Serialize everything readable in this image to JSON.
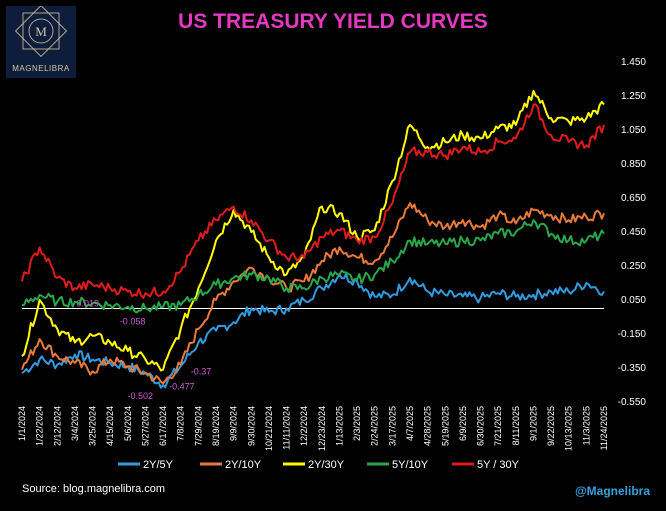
{
  "header": {
    "title": "US TREASURY YIELD CURVES",
    "logo_text": "MAGNELIBRA",
    "logo_monogram": "M"
  },
  "footer": {
    "source": "Source:  blog.magnelibra.com",
    "handle": "@Magnelibra"
  },
  "colors": {
    "title": "#e43ac2",
    "s2y5y": "#2f9be0",
    "s2y10y": "#ea7a3a",
    "s2y30y": "#ffff00",
    "s5y10y": "#27a84a",
    "s5y30y": "#e01b1b",
    "annotation": "#d15ed6",
    "handle": "#33a3e0"
  },
  "chart_data": {
    "type": "line",
    "title": "US TREASURY YIELD CURVES",
    "ylim": [
      -0.55,
      1.45
    ],
    "yticks": [
      "1.450",
      "1.250",
      "1.050",
      "0.850",
      "0.650",
      "0.450",
      "0.250",
      "0.050",
      "-0.150",
      "-0.350",
      "-0.550"
    ],
    "ytick_values": [
      1.45,
      1.25,
      1.05,
      0.85,
      0.65,
      0.45,
      0.25,
      0.05,
      -0.15,
      -0.35,
      -0.55
    ],
    "zero_line": 0.0,
    "legend_position": "bottom",
    "categories": [
      "1/1/2024",
      "1/22/2024",
      "2/12/2024",
      "3/4/2024",
      "3/25/2024",
      "4/15/2024",
      "5/6/2024",
      "5/27/2024",
      "6/17/2024",
      "7/8/2024",
      "7/29/2024",
      "8/19/2024",
      "9/9/2024",
      "9/30/2024",
      "10/21/2024",
      "11/11/2024",
      "12/2/2024",
      "12/23/2024",
      "1/13/2025",
      "2/3/2025",
      "2/24/2025",
      "3/17/2025",
      "4/7/2025",
      "4/28/2025",
      "5/19/2025",
      "6/9/2025",
      "6/30/2025",
      "7/21/2025",
      "8/11/2025",
      "9/1/2025",
      "9/22/2025",
      "10/13/2025",
      "11/3/2025",
      "11/24/2025"
    ],
    "series": [
      {
        "name": "2Y/5Y",
        "color": "#2f9be0",
        "values": [
          -0.38,
          -0.3,
          -0.33,
          -0.27,
          -0.3,
          -0.32,
          -0.34,
          -0.38,
          -0.45,
          -0.34,
          -0.2,
          -0.13,
          -0.08,
          0.0,
          -0.02,
          0.0,
          0.05,
          0.12,
          0.2,
          0.16,
          0.07,
          0.08,
          0.18,
          0.1,
          0.08,
          0.07,
          0.06,
          0.09,
          0.07,
          0.08,
          0.1,
          0.1,
          0.15,
          0.1
        ]
      },
      {
        "name": "2Y/10Y",
        "color": "#ea7a3a",
        "values": [
          -0.36,
          -0.18,
          -0.28,
          -0.32,
          -0.37,
          -0.3,
          -0.34,
          -0.38,
          -0.44,
          -0.33,
          -0.12,
          0.05,
          0.16,
          0.24,
          0.18,
          0.12,
          0.16,
          0.28,
          0.36,
          0.3,
          0.28,
          0.42,
          0.62,
          0.52,
          0.48,
          0.52,
          0.48,
          0.55,
          0.5,
          0.58,
          0.55,
          0.52,
          0.54,
          0.56
        ]
      },
      {
        "name": "2Y/30Y",
        "color": "#ffff00",
        "values": [
          -0.28,
          0.05,
          -0.12,
          -0.2,
          -0.16,
          -0.2,
          -0.25,
          -0.3,
          -0.36,
          -0.12,
          0.12,
          0.4,
          0.58,
          0.45,
          0.3,
          0.2,
          0.3,
          0.6,
          0.56,
          0.42,
          0.46,
          0.75,
          1.08,
          0.95,
          0.98,
          1.02,
          1.0,
          1.06,
          1.08,
          1.28,
          1.12,
          1.1,
          1.12,
          1.2
        ]
      },
      {
        "name": "5Y/10Y",
        "color": "#27a84a",
        "values": [
          0.02,
          0.08,
          0.04,
          0.04,
          0.03,
          0.02,
          0.01,
          0.0,
          0.01,
          0.02,
          0.08,
          0.14,
          0.18,
          0.2,
          0.18,
          0.12,
          0.12,
          0.18,
          0.2,
          0.17,
          0.2,
          0.28,
          0.4,
          0.38,
          0.38,
          0.4,
          0.4,
          0.44,
          0.45,
          0.52,
          0.44,
          0.4,
          0.4,
          0.44
        ]
      },
      {
        "name": "5Y / 30Y",
        "color": "#e01b1b",
        "values": [
          0.16,
          0.36,
          0.18,
          0.12,
          0.14,
          0.12,
          0.1,
          0.09,
          0.1,
          0.22,
          0.4,
          0.52,
          0.6,
          0.52,
          0.4,
          0.3,
          0.3,
          0.42,
          0.46,
          0.4,
          0.42,
          0.62,
          0.92,
          0.92,
          0.9,
          0.95,
          0.92,
          0.98,
          1.0,
          1.2,
          1.02,
          0.98,
          0.96,
          1.08
        ]
      }
    ],
    "annotations": [
      {
        "text": "0.019",
        "x": "3/25/2024",
        "y": 0.019
      },
      {
        "text": "-0.058",
        "x": "5/6/2024",
        "y": -0.058
      },
      {
        "text": "-0.37",
        "x": "7/8/2024",
        "y": -0.37
      },
      {
        "text": "-0.477",
        "x": "6/17/2024",
        "y": -0.477
      },
      {
        "text": "-0.502",
        "x": "5/27/2024",
        "y": -0.502
      }
    ]
  }
}
